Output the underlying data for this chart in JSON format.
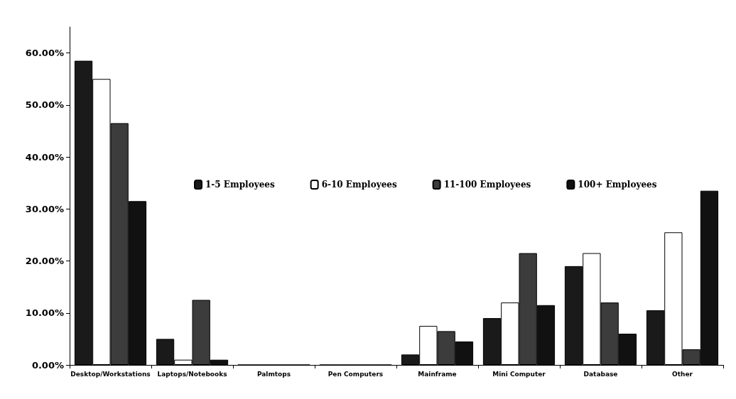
{
  "chart_data": {
    "type": "bar",
    "categories": [
      "Desktop/Workstations",
      "Laptops/Notebooks",
      "Palmtops",
      "Pen Computers",
      "Mainframe",
      "Mini Computer",
      "Database",
      "Other"
    ],
    "series": [
      {
        "name": "1-5 Employees",
        "color": "#1a1a1a",
        "values": [
          58.5,
          5,
          0,
          0,
          2,
          9,
          19,
          10.5
        ]
      },
      {
        "name": "6-10 Employees",
        "color": "#ffffff",
        "values": [
          55,
          1,
          0,
          0,
          7.5,
          12,
          21.5,
          25.5
        ]
      },
      {
        "name": "11-100 Employees",
        "color": "#3c3c3c",
        "values": [
          46.5,
          12.5,
          0,
          0,
          6.5,
          21.5,
          12,
          3
        ]
      },
      {
        "name": "100+ Employees",
        "color": "#111111",
        "values": [
          31.5,
          1,
          0,
          0,
          4.5,
          11.5,
          6,
          33.5
        ]
      }
    ],
    "ylim": [
      0,
      65
    ],
    "yticks": [
      {
        "value": 0,
        "label": "0.00%"
      },
      {
        "value": 10,
        "label": "10.00%"
      },
      {
        "value": 20,
        "label": "20.00%"
      },
      {
        "value": 30,
        "label": "30.00%"
      },
      {
        "value": 40,
        "label": "40.00%"
      },
      {
        "value": 50,
        "label": "50.00%"
      },
      {
        "value": 60,
        "label": "60.00%"
      }
    ],
    "grid": false,
    "legend": "top"
  }
}
